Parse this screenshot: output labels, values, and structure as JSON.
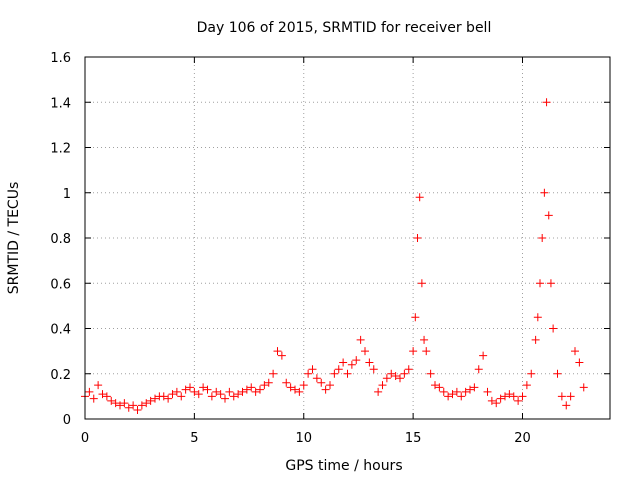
{
  "chart_data": {
    "type": "scatter",
    "title": "Day 106 of 2015, SRMTID for receiver bell",
    "xlabel": "GPS time / hours",
    "ylabel": "SRMTID / TECUs",
    "xlim": [
      0,
      24
    ],
    "ylim": [
      0,
      1.6
    ],
    "xticks": [
      0,
      5,
      10,
      15,
      20
    ],
    "yticks": [
      0,
      0.2,
      0.4,
      0.6,
      0.8,
      1,
      1.2,
      1.4,
      1.6
    ],
    "xtick_labels": [
      "0",
      "5",
      "10",
      "15",
      "20"
    ],
    "ytick_labels": [
      "0",
      "0.2",
      "0.4",
      "0.6",
      "0.8",
      "1",
      "1.2",
      "1.4",
      "1.6"
    ],
    "grid": true,
    "marker": "+",
    "marker_color": "#ff0000",
    "series": [
      {
        "name": "SRMTID",
        "x": [
          0.0,
          0.2,
          0.4,
          0.6,
          0.8,
          1.0,
          1.2,
          1.4,
          1.6,
          1.8,
          2.0,
          2.2,
          2.4,
          2.6,
          2.8,
          3.0,
          3.2,
          3.4,
          3.6,
          3.8,
          4.0,
          4.2,
          4.4,
          4.6,
          4.8,
          5.0,
          5.2,
          5.4,
          5.6,
          5.8,
          6.0,
          6.2,
          6.4,
          6.6,
          6.8,
          7.0,
          7.2,
          7.4,
          7.6,
          7.8,
          8.0,
          8.2,
          8.4,
          8.6,
          8.8,
          9.0,
          9.2,
          9.4,
          9.6,
          9.8,
          10.0,
          10.2,
          10.4,
          10.6,
          10.8,
          11.0,
          11.2,
          11.4,
          11.6,
          11.8,
          12.0,
          12.2,
          12.4,
          12.6,
          12.8,
          13.0,
          13.2,
          13.4,
          13.6,
          13.8,
          14.0,
          14.2,
          14.4,
          14.6,
          14.8,
          15.0,
          15.1,
          15.2,
          15.3,
          15.4,
          15.5,
          15.6,
          15.8,
          16.0,
          16.2,
          16.4,
          16.6,
          16.8,
          17.0,
          17.2,
          17.4,
          17.6,
          17.8,
          18.0,
          18.2,
          18.4,
          18.6,
          18.8,
          19.0,
          19.2,
          19.4,
          19.6,
          19.8,
          20.0,
          20.2,
          20.4,
          20.6,
          20.7,
          20.8,
          20.9,
          21.0,
          21.1,
          21.2,
          21.3,
          21.4,
          21.6,
          21.8,
          22.0,
          22.2,
          22.4,
          22.6,
          22.8
        ],
        "y": [
          0.1,
          0.12,
          0.09,
          0.15,
          0.11,
          0.1,
          0.08,
          0.07,
          0.06,
          0.07,
          0.05,
          0.06,
          0.04,
          0.06,
          0.07,
          0.08,
          0.09,
          0.1,
          0.1,
          0.09,
          0.11,
          0.12,
          0.1,
          0.13,
          0.14,
          0.12,
          0.11,
          0.14,
          0.13,
          0.1,
          0.12,
          0.11,
          0.09,
          0.12,
          0.1,
          0.11,
          0.12,
          0.13,
          0.14,
          0.12,
          0.13,
          0.15,
          0.16,
          0.2,
          0.3,
          0.28,
          0.16,
          0.14,
          0.13,
          0.12,
          0.15,
          0.2,
          0.22,
          0.18,
          0.16,
          0.13,
          0.15,
          0.2,
          0.22,
          0.25,
          0.2,
          0.24,
          0.26,
          0.35,
          0.3,
          0.25,
          0.22,
          0.12,
          0.15,
          0.18,
          0.2,
          0.19,
          0.18,
          0.2,
          0.22,
          0.3,
          0.45,
          0.8,
          0.98,
          0.6,
          0.35,
          0.3,
          0.2,
          0.15,
          0.14,
          0.12,
          0.1,
          0.11,
          0.12,
          0.1,
          0.12,
          0.13,
          0.14,
          0.22,
          0.28,
          0.12,
          0.08,
          0.07,
          0.09,
          0.1,
          0.11,
          0.1,
          0.08,
          0.1,
          0.15,
          0.2,
          0.35,
          0.45,
          0.6,
          0.8,
          1.0,
          1.4,
          0.9,
          0.6,
          0.4,
          0.2,
          0.1,
          0.06,
          0.1,
          0.3,
          0.25,
          0.14
        ]
      }
    ]
  }
}
